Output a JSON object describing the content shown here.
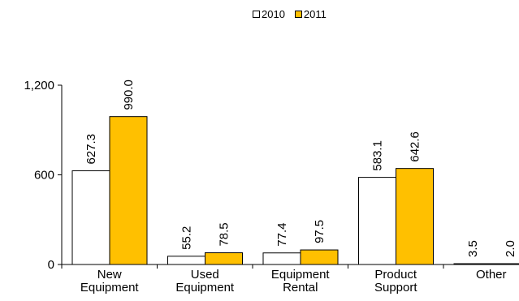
{
  "chart_data": {
    "type": "bar",
    "categories": [
      "New\nEquipment",
      "Used\nEquipment",
      "Equipment\nRental",
      "Product\nSupport",
      "Other"
    ],
    "series": [
      {
        "name": "2010",
        "values": [
          627.3,
          55.2,
          77.4,
          583.1,
          3.5
        ],
        "labels": [
          "627.3",
          "55.2",
          "77.4",
          "583.1",
          "3.5"
        ],
        "color": "#ffffff"
      },
      {
        "name": "2011",
        "values": [
          990.0,
          78.5,
          97.5,
          642.6,
          2.0
        ],
        "labels": [
          "990.0",
          "78.5",
          "97.5",
          "642.6",
          "2.0"
        ],
        "color": "#ffc000"
      }
    ],
    "y_ticks": [
      0,
      600,
      1200
    ],
    "y_tick_labels": [
      "0",
      "600",
      "1,200"
    ],
    "ylim": [
      0,
      1200
    ],
    "grid": false,
    "legend_position": "top-center",
    "title": "",
    "xlabel": "",
    "ylabel": ""
  }
}
